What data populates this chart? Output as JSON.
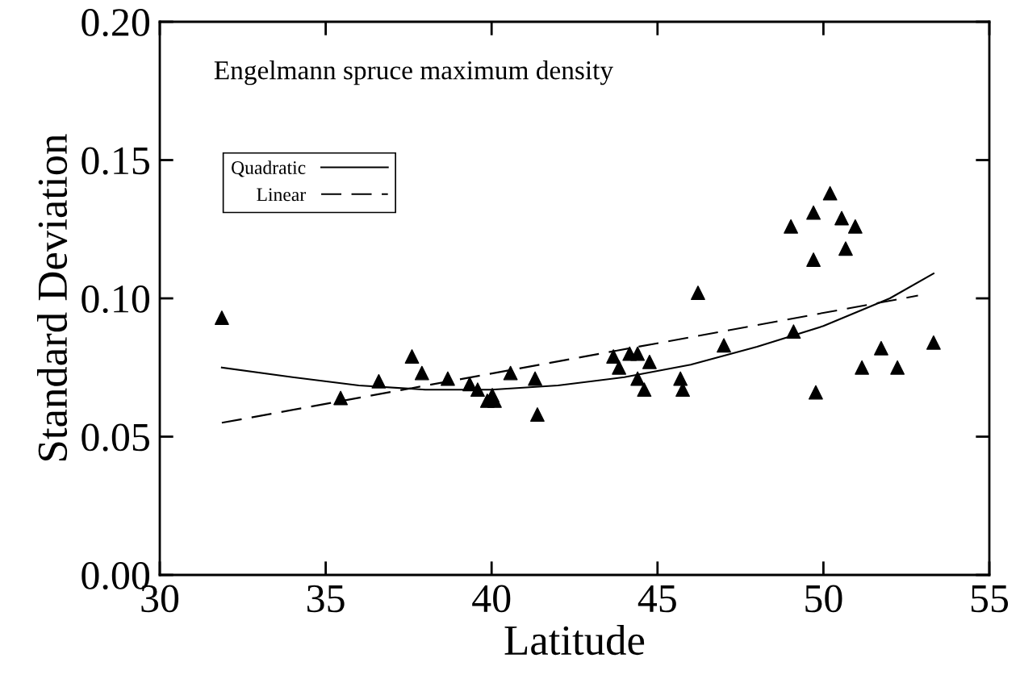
{
  "chart_data": {
    "type": "scatter",
    "xlabel": "Latitude",
    "ylabel": "Standard Deviation",
    "annotations": [
      "Engelmann spruce maximum density"
    ],
    "xlim": [
      30,
      55
    ],
    "xticks": [
      30,
      35,
      40,
      45,
      50,
      55
    ],
    "ylim": [
      0,
      0.2
    ],
    "yticks": [
      {
        "value": 0,
        "label": "0.00"
      },
      {
        "value": 0.05,
        "label": "0.05"
      },
      {
        "value": 0.1,
        "label": "0.10"
      },
      {
        "value": 0.15,
        "label": "0.15"
      },
      {
        "value": 0.2,
        "label": "0.20"
      }
    ],
    "grid": false,
    "legend": "top left",
    "series": [
      {
        "color": "#000000",
        "marker": "triangle",
        "x": [
          31.87,
          35.45,
          36.6,
          37.6,
          37.9,
          38.68,
          39.34,
          39.58,
          39.87,
          40.02,
          40.09,
          40.57,
          41.31,
          41.38,
          43.67,
          43.84,
          44.16,
          44.4,
          44.4,
          44.6,
          44.76,
          45.69,
          45.76,
          46.22,
          47.0,
          49.02,
          49.1,
          49.7,
          49.7,
          49.77,
          50.2,
          50.55,
          50.67,
          50.96,
          51.16,
          51.74,
          52.23,
          53.32
        ],
        "values": [
          0.093,
          0.064,
          0.07,
          0.079,
          0.073,
          0.071,
          0.069,
          0.067,
          0.063,
          0.065,
          0.063,
          0.073,
          0.071,
          0.058,
          0.079,
          0.075,
          0.08,
          0.08,
          0.071,
          0.067,
          0.077,
          0.071,
          0.067,
          0.102,
          0.083,
          0.126,
          0.088,
          0.131,
          0.114,
          0.066,
          0.138,
          0.129,
          0.118,
          0.126,
          0.075,
          0.082,
          0.075,
          0.084
        ]
      },
      {
        "type": "line",
        "name": "Quadratic",
        "color": "#000000",
        "line_style": "solid",
        "marker": "none",
        "x": [
          31.87,
          34,
          36,
          38,
          40,
          42,
          44,
          46,
          48,
          50,
          52,
          53.32
        ],
        "values": [
          0.075,
          0.0715,
          0.0685,
          0.067,
          0.067,
          0.0685,
          0.0715,
          0.076,
          0.0825,
          0.09,
          0.1,
          0.109
        ]
      },
      {
        "type": "line",
        "name": "Linear",
        "color": "#000000",
        "line_style": "dashed",
        "marker": "none",
        "x": [
          31.87,
          52.85
        ],
        "values": [
          0.055,
          0.101
        ]
      }
    ]
  }
}
